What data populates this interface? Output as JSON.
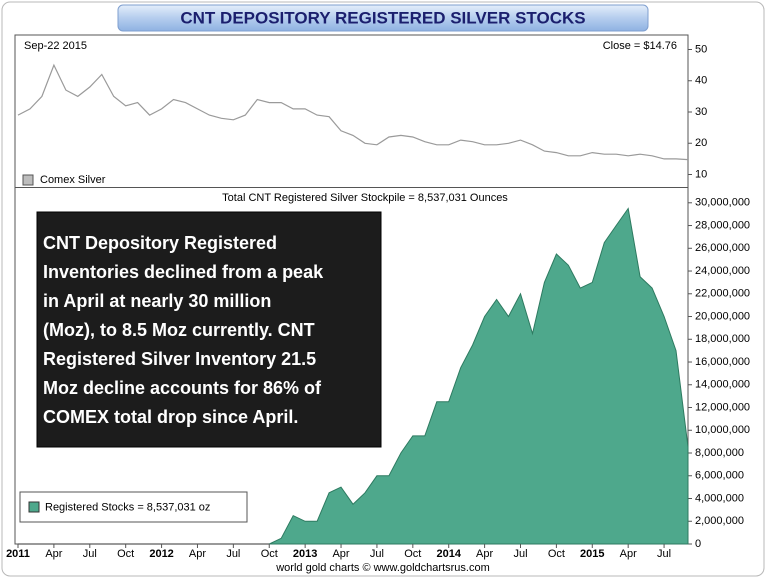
{
  "title": "CNT DEPOSITORY REGISTERED SILVER STOCKS",
  "footer": "world gold charts © www.goldchartsrus.com",
  "chart_data": [
    {
      "type": "line",
      "date_label": "Sep-22  2015",
      "close_label": "Close = $14.76",
      "legend": "Comex Silver",
      "color": "#9a9a9a",
      "x": [
        "2011-01",
        "2011-02",
        "2011-03",
        "2011-04",
        "2011-05",
        "2011-06",
        "2011-07",
        "2011-08",
        "2011-09",
        "2011-10",
        "2011-11",
        "2011-12",
        "2012-01",
        "2012-02",
        "2012-03",
        "2012-04",
        "2012-05",
        "2012-06",
        "2012-07",
        "2012-08",
        "2012-09",
        "2012-10",
        "2012-11",
        "2012-12",
        "2013-01",
        "2013-02",
        "2013-03",
        "2013-04",
        "2013-05",
        "2013-06",
        "2013-07",
        "2013-08",
        "2013-09",
        "2013-10",
        "2013-11",
        "2013-12",
        "2014-01",
        "2014-02",
        "2014-03",
        "2014-04",
        "2014-05",
        "2014-06",
        "2014-07",
        "2014-08",
        "2014-09",
        "2014-10",
        "2014-11",
        "2014-12",
        "2015-01",
        "2015-02",
        "2015-03",
        "2015-04",
        "2015-05",
        "2015-06",
        "2015-07",
        "2015-08",
        "2015-09"
      ],
      "values": [
        29,
        31,
        35,
        45,
        37,
        35,
        38,
        42,
        35,
        32,
        33,
        29,
        31,
        34,
        33,
        31,
        29,
        28,
        27.5,
        29,
        34,
        33,
        33,
        31,
        31,
        29,
        28.5,
        24,
        22.5,
        20,
        19.5,
        22,
        22.5,
        22,
        20.5,
        19.5,
        19.5,
        21,
        20.5,
        19.5,
        19.5,
        20,
        21,
        19.5,
        17.5,
        17,
        16,
        16,
        17,
        16.5,
        16.5,
        16,
        16.5,
        16,
        15,
        15,
        14.76
      ],
      "xlim": [
        "2011-01",
        "2015-09"
      ],
      "ylim": [
        6,
        54
      ],
      "yticks": [
        10,
        20,
        30,
        40,
        50
      ]
    },
    {
      "type": "area",
      "header": "Total CNT Registered Silver Stockpile = 8,537,031 Ounces",
      "legend": "Registered Stocks = 8,537,031 oz",
      "color": "#4ea88c",
      "line_color": "#2d7a60",
      "annotation": [
        "CNT Depository Registered",
        "Inventories declined from a peak",
        "in April at nearly 30 million",
        "(Moz), to 8.5 Moz currently.  CNT",
        "Registered Silver Inventory 21.5",
        "Moz decline accounts for 86% of",
        "COMEX total drop since April."
      ],
      "x": [
        "2012-10",
        "2012-11",
        "2012-12",
        "2013-01",
        "2013-02",
        "2013-03",
        "2013-04",
        "2013-05",
        "2013-06",
        "2013-07",
        "2013-08",
        "2013-09",
        "2013-10",
        "2013-11",
        "2013-12",
        "2014-01",
        "2014-02",
        "2014-03",
        "2014-04",
        "2014-05",
        "2014-06",
        "2014-07",
        "2014-08",
        "2014-09",
        "2014-10",
        "2014-11",
        "2014-12",
        "2015-01",
        "2015-02",
        "2015-03",
        "2015-04",
        "2015-05",
        "2015-06",
        "2015-07",
        "2015-08",
        "2015-09"
      ],
      "values": [
        0,
        500000,
        2500000,
        2000000,
        2000000,
        4500000,
        5000000,
        3500000,
        4500000,
        6000000,
        6000000,
        8000000,
        9500000,
        9500000,
        12500000,
        12500000,
        15500000,
        17500000,
        20000000,
        21500000,
        20000000,
        22000000,
        18500000,
        23000000,
        25500000,
        24500000,
        22500000,
        23000000,
        26500000,
        28000000,
        29500000,
        23500000,
        22500000,
        20000000,
        17000000,
        8537031
      ],
      "xlim": [
        "2011-01",
        "2015-09"
      ],
      "xticks": [
        {
          "value": "2011-01",
          "label": "2011"
        },
        {
          "value": "2011-04",
          "label": "Apr"
        },
        {
          "value": "2011-07",
          "label": "Jul"
        },
        {
          "value": "2011-10",
          "label": "Oct"
        },
        {
          "value": "2012-01",
          "label": "2012"
        },
        {
          "value": "2012-04",
          "label": "Apr"
        },
        {
          "value": "2012-07",
          "label": "Jul"
        },
        {
          "value": "2012-10",
          "label": "Oct"
        },
        {
          "value": "2013-01",
          "label": "2013"
        },
        {
          "value": "2013-04",
          "label": "Apr"
        },
        {
          "value": "2013-07",
          "label": "Jul"
        },
        {
          "value": "2013-10",
          "label": "Oct"
        },
        {
          "value": "2014-01",
          "label": "2014"
        },
        {
          "value": "2014-04",
          "label": "Apr"
        },
        {
          "value": "2014-07",
          "label": "Jul"
        },
        {
          "value": "2014-10",
          "label": "Oct"
        },
        {
          "value": "2015-01",
          "label": "2015"
        },
        {
          "value": "2015-04",
          "label": "Apr"
        },
        {
          "value": "2015-07",
          "label": "Jul"
        }
      ],
      "ylim": [
        0,
        31300000
      ],
      "yticks": [
        0,
        {
          "value": 2000000,
          "label": "2,000,000"
        },
        {
          "value": 4000000,
          "label": "4,000,000"
        },
        {
          "value": 6000000,
          "label": "6,000,000"
        },
        {
          "value": 8000000,
          "label": "8,000,000"
        },
        {
          "value": 10000000,
          "label": "10,000,000"
        },
        {
          "value": 12000000,
          "label": "12,000,000"
        },
        {
          "value": 14000000,
          "label": "14,000,000"
        },
        {
          "value": 16000000,
          "label": "16,000,000"
        },
        {
          "value": 18000000,
          "label": "18,000,000"
        },
        {
          "value": 20000000,
          "label": "20,000,000"
        },
        {
          "value": 22000000,
          "label": "22,000,000"
        },
        {
          "value": 24000000,
          "label": "24,000,000"
        },
        {
          "value": 26000000,
          "label": "26,000,000"
        },
        {
          "value": 28000000,
          "label": "28,000,000"
        },
        {
          "value": 30000000,
          "label": "30,000,000"
        }
      ]
    }
  ]
}
